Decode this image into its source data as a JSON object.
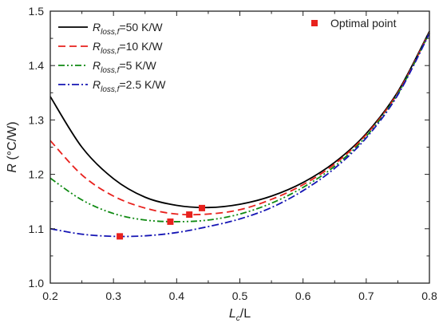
{
  "chart_data": {
    "type": "line",
    "xlabel": "L_c/L",
    "xlabel_parts": {
      "main": "L",
      "sub": "c",
      "rest": "/L"
    },
    "ylabel": "R (°C/W)",
    "ylabel_parts": {
      "main": "R",
      "rest": " (°C/W)"
    },
    "xlim": [
      0.2,
      0.8
    ],
    "ylim": [
      1.0,
      1.5
    ],
    "xticks": [
      "0.2",
      "0.3",
      "0.4",
      "0.5",
      "0.6",
      "0.7",
      "0.8"
    ],
    "yticks": [
      "1.0",
      "1.1",
      "1.2",
      "1.3",
      "1.4",
      "1.5"
    ],
    "grid": false,
    "legend_position": "top-left",
    "series": [
      {
        "name": "R_loss,f=50 K/W",
        "name_parts": {
          "main": "R",
          "sub": "loss,f",
          "rest": "=50 K/W"
        },
        "color": "#000000",
        "dash": "solid",
        "x": [
          0.2,
          0.25,
          0.3,
          0.35,
          0.4,
          0.45,
          0.5,
          0.55,
          0.6,
          0.65,
          0.7,
          0.75,
          0.8
        ],
        "y": [
          1.343,
          1.25,
          1.192,
          1.158,
          1.143,
          1.139,
          1.145,
          1.16,
          1.185,
          1.222,
          1.275,
          1.352,
          1.463
        ]
      },
      {
        "name": "R_loss,f=10 K/W",
        "name_parts": {
          "main": "R",
          "sub": "loss,f",
          "rest": "=10 K/W"
        },
        "color": "#e8211d",
        "dash": "dashed",
        "x": [
          0.2,
          0.25,
          0.3,
          0.35,
          0.4,
          0.45,
          0.5,
          0.55,
          0.6,
          0.65,
          0.7,
          0.75,
          0.8
        ],
        "y": [
          1.262,
          1.199,
          1.16,
          1.138,
          1.127,
          1.127,
          1.135,
          1.154,
          1.181,
          1.219,
          1.273,
          1.35,
          1.461
        ]
      },
      {
        "name": "R_loss,f=5 K/W",
        "name_parts": {
          "main": "R",
          "sub": "loss,f",
          "rest": "=5 K/W"
        },
        "color": "#0f8a12",
        "dash": "dash-dot-dot",
        "x": [
          0.2,
          0.25,
          0.3,
          0.35,
          0.4,
          0.45,
          0.5,
          0.55,
          0.6,
          0.65,
          0.7,
          0.75,
          0.8
        ],
        "y": [
          1.193,
          1.153,
          1.128,
          1.116,
          1.113,
          1.116,
          1.127,
          1.147,
          1.176,
          1.215,
          1.27,
          1.348,
          1.46
        ]
      },
      {
        "name": "R_loss,f=2.5 K/W",
        "name_parts": {
          "main": "R",
          "sub": "loss,f",
          "rest": "=2.5 K/W"
        },
        "color": "#1515b4",
        "dash": "dash-dot",
        "x": [
          0.2,
          0.25,
          0.3,
          0.35,
          0.4,
          0.45,
          0.5,
          0.55,
          0.6,
          0.65,
          0.7,
          0.75,
          0.8
        ],
        "y": [
          1.1,
          1.09,
          1.086,
          1.087,
          1.093,
          1.104,
          1.118,
          1.139,
          1.17,
          1.211,
          1.267,
          1.346,
          1.459
        ]
      }
    ],
    "markers": {
      "name": "Optimal point",
      "color": "#e8211d",
      "shape": "square",
      "points": [
        {
          "x": 0.44,
          "y": 1.138
        },
        {
          "x": 0.42,
          "y": 1.126
        },
        {
          "x": 0.39,
          "y": 1.113
        },
        {
          "x": 0.31,
          "y": 1.086
        }
      ]
    }
  }
}
